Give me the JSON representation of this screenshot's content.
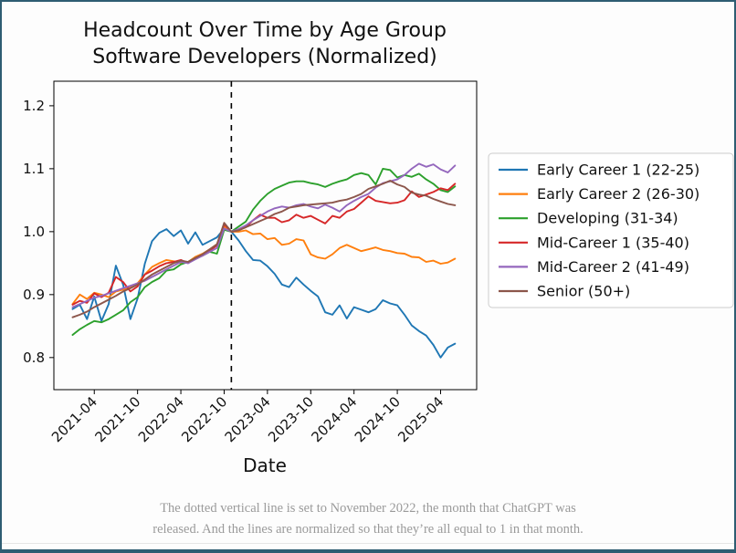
{
  "figure": {
    "title_line1": "Headcount Over Time by Age Group",
    "title_line2": "Software Developers (Normalized)",
    "xlabel": "Date"
  },
  "chart_data": {
    "type": "line",
    "x_months": [
      "2021-01",
      "2021-02",
      "2021-03",
      "2021-04",
      "2021-05",
      "2021-06",
      "2021-07",
      "2021-08",
      "2021-09",
      "2021-10",
      "2021-11",
      "2021-12",
      "2022-01",
      "2022-02",
      "2022-03",
      "2022-04",
      "2022-05",
      "2022-06",
      "2022-07",
      "2022-08",
      "2022-09",
      "2022-10",
      "2022-11",
      "2022-12",
      "2023-01",
      "2023-02",
      "2023-03",
      "2023-04",
      "2023-05",
      "2023-06",
      "2023-07",
      "2023-08",
      "2023-09",
      "2023-10",
      "2023-11",
      "2023-12",
      "2024-01",
      "2024-02",
      "2024-03",
      "2024-04",
      "2024-05",
      "2024-06",
      "2024-07",
      "2024-08",
      "2024-09",
      "2024-10",
      "2024-11",
      "2024-12",
      "2025-01",
      "2025-02",
      "2025-03",
      "2025-04",
      "2025-05",
      "2025-06"
    ],
    "xtick_labels": [
      "2021-04",
      "2021-10",
      "2022-04",
      "2022-10",
      "2023-04",
      "2023-10",
      "2024-04",
      "2024-10",
      "2025-04"
    ],
    "ytick_labels": [
      "0.8",
      "0.9",
      "1.0",
      "1.1",
      "1.2"
    ],
    "ytick_values": [
      0.8,
      0.9,
      1.0,
      1.1,
      1.2
    ],
    "ylim": [
      0.749,
      1.239
    ],
    "grid": false,
    "legend_position": "right-outside",
    "vline": {
      "month": "2022-11",
      "style": "dashed",
      "color": "#000000"
    },
    "normalization_month": "2022-11",
    "series": [
      {
        "name": "Early Career 1 (22-25)",
        "color": "#1f77b4",
        "values": [
          0.877,
          0.884,
          0.861,
          0.897,
          0.858,
          0.885,
          0.946,
          0.916,
          0.861,
          0.894,
          0.949,
          0.985,
          0.998,
          1.004,
          0.993,
          1.002,
          0.981,
          0.999,
          0.979,
          0.985,
          0.991,
          1.005,
          1.0,
          0.986,
          0.969,
          0.955,
          0.954,
          0.945,
          0.933,
          0.916,
          0.912,
          0.927,
          0.916,
          0.906,
          0.897,
          0.872,
          0.868,
          0.883,
          0.862,
          0.88,
          0.876,
          0.872,
          0.877,
          0.891,
          0.886,
          0.883,
          0.868,
          0.851,
          0.842,
          0.835,
          0.82,
          0.8,
          0.816,
          0.822
        ]
      },
      {
        "name": "Early Career 2 (26-30)",
        "color": "#ff7f0e",
        "values": [
          0.885,
          0.9,
          0.893,
          0.903,
          0.9,
          0.896,
          0.905,
          0.908,
          0.912,
          0.918,
          0.932,
          0.944,
          0.95,
          0.955,
          0.953,
          0.95,
          0.952,
          0.96,
          0.965,
          0.972,
          0.98,
          1.008,
          1.0,
          1.0,
          1.002,
          0.996,
          0.997,
          0.988,
          0.99,
          0.979,
          0.981,
          0.988,
          0.986,
          0.964,
          0.959,
          0.957,
          0.964,
          0.974,
          0.979,
          0.974,
          0.969,
          0.972,
          0.975,
          0.971,
          0.969,
          0.966,
          0.965,
          0.96,
          0.959,
          0.952,
          0.954,
          0.949,
          0.951,
          0.957
        ]
      },
      {
        "name": "Developing (31-34)",
        "color": "#2ca02c",
        "values": [
          0.836,
          0.845,
          0.852,
          0.858,
          0.856,
          0.861,
          0.868,
          0.875,
          0.888,
          0.896,
          0.912,
          0.92,
          0.926,
          0.938,
          0.94,
          0.948,
          0.952,
          0.958,
          0.962,
          0.968,
          0.965,
          1.003,
          1.0,
          1.008,
          1.016,
          1.035,
          1.049,
          1.06,
          1.068,
          1.073,
          1.078,
          1.08,
          1.08,
          1.077,
          1.075,
          1.071,
          1.076,
          1.08,
          1.083,
          1.09,
          1.093,
          1.09,
          1.075,
          1.1,
          1.098,
          1.086,
          1.09,
          1.087,
          1.092,
          1.083,
          1.076,
          1.066,
          1.063,
          1.072
        ]
      },
      {
        "name": "Mid-Career 1 (35-40)",
        "color": "#d62728",
        "values": [
          0.884,
          0.89,
          0.887,
          0.902,
          0.896,
          0.903,
          0.928,
          0.92,
          0.905,
          0.913,
          0.932,
          0.938,
          0.945,
          0.95,
          0.952,
          0.955,
          0.95,
          0.958,
          0.962,
          0.97,
          0.978,
          1.012,
          1.0,
          1.003,
          1.007,
          1.018,
          1.027,
          1.022,
          1.022,
          1.015,
          1.018,
          1.027,
          1.022,
          1.025,
          1.019,
          1.013,
          1.025,
          1.022,
          1.032,
          1.036,
          1.046,
          1.056,
          1.049,
          1.047,
          1.045,
          1.046,
          1.05,
          1.064,
          1.055,
          1.059,
          1.063,
          1.069,
          1.066,
          1.076
        ]
      },
      {
        "name": "Mid-Career 2 (41-49)",
        "color": "#9467bd",
        "values": [
          0.88,
          0.885,
          0.89,
          0.895,
          0.898,
          0.902,
          0.906,
          0.91,
          0.914,
          0.918,
          0.922,
          0.928,
          0.934,
          0.94,
          0.946,
          0.952,
          0.95,
          0.956,
          0.962,
          0.968,
          0.974,
          1.005,
          1.0,
          1.004,
          1.01,
          1.018,
          1.025,
          1.032,
          1.037,
          1.04,
          1.038,
          1.042,
          1.044,
          1.04,
          1.037,
          1.043,
          1.038,
          1.032,
          1.042,
          1.049,
          1.055,
          1.06,
          1.07,
          1.077,
          1.08,
          1.083,
          1.09,
          1.1,
          1.108,
          1.103,
          1.107,
          1.099,
          1.094,
          1.105
        ]
      },
      {
        "name": "Senior (50+)",
        "color": "#8c564b",
        "values": [
          0.864,
          0.868,
          0.873,
          0.88,
          0.886,
          0.892,
          0.898,
          0.905,
          0.91,
          0.916,
          0.924,
          0.932,
          0.938,
          0.944,
          0.95,
          0.954,
          0.952,
          0.958,
          0.964,
          0.972,
          0.98,
          1.014,
          1.0,
          1.002,
          1.007,
          1.012,
          1.017,
          1.022,
          1.028,
          1.032,
          1.038,
          1.04,
          1.042,
          1.043,
          1.044,
          1.045,
          1.046,
          1.049,
          1.051,
          1.055,
          1.06,
          1.068,
          1.072,
          1.076,
          1.081,
          1.075,
          1.071,
          1.062,
          1.059,
          1.057,
          1.052,
          1.048,
          1.044,
          1.042
        ]
      }
    ]
  },
  "caption": {
    "line1": "The dotted vertical line is set to November 2022, the month that ChatGPT was",
    "line2": "released. And the lines are normalized so that they’re all equal to 1 in that month."
  }
}
